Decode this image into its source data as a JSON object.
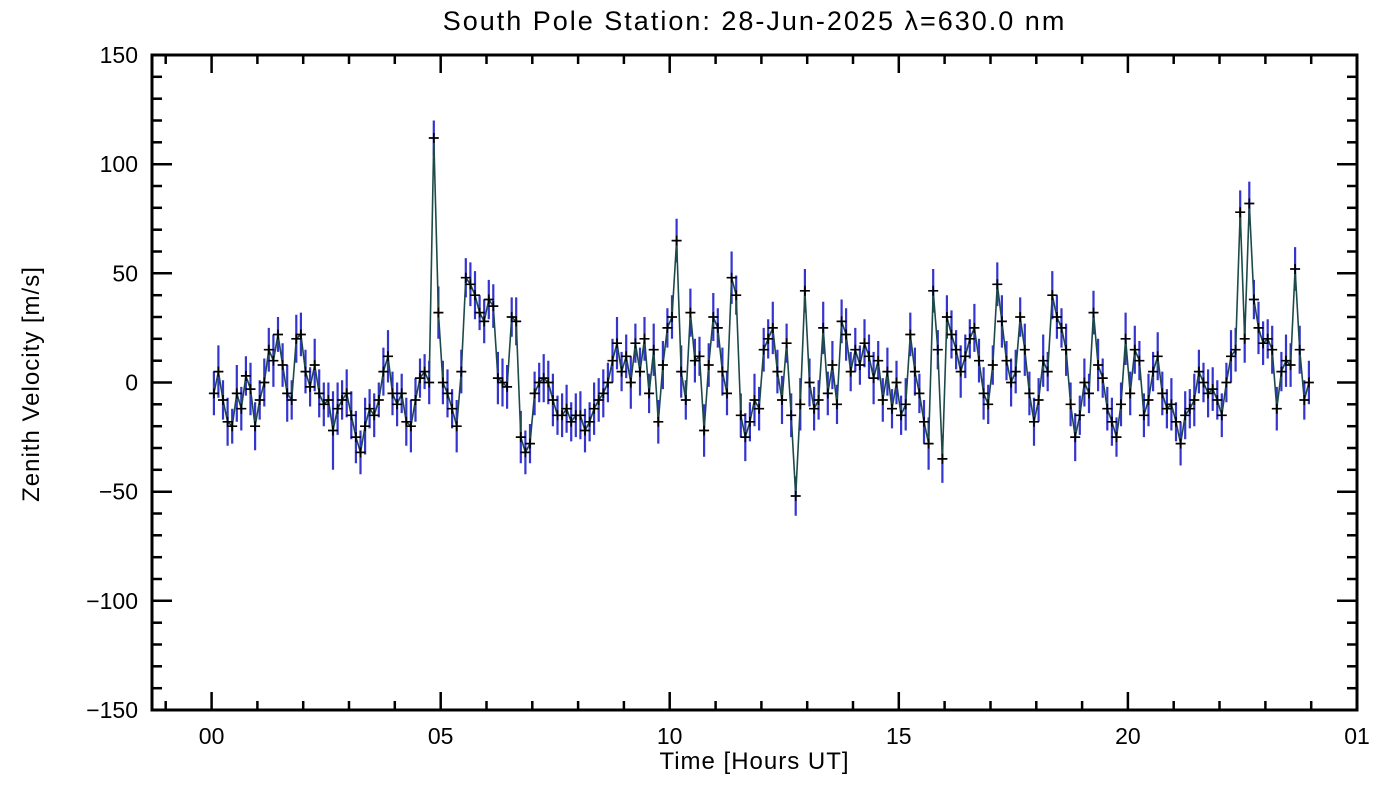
{
  "chart_data": {
    "type": "line",
    "title": "South Pole Station: 28-Jun-2025 λ=630.0 nm",
    "xlabel": "Time [Hours UT]",
    "ylabel": "Zenith Velocity [m/s]",
    "xlim": [
      -1.3,
      25
    ],
    "ylim": [
      -150,
      150
    ],
    "grid": false,
    "legend_position": "none",
    "marker": "plus",
    "error_bars": true,
    "colors": {
      "line": "#1d4a49",
      "error_bar": "#3434cf",
      "marker": "#000000",
      "frame": "#000000",
      "background": "#ffffff"
    },
    "xticks": [
      {
        "value": 0,
        "label": "00"
      },
      {
        "value": 5,
        "label": "05"
      },
      {
        "value": 10,
        "label": "10"
      },
      {
        "value": 15,
        "label": "15"
      },
      {
        "value": 20,
        "label": "20"
      },
      {
        "value": 25,
        "label": "01"
      }
    ],
    "x_minor_interval": 1,
    "yticks": [
      {
        "value": -150,
        "label": "−150"
      },
      {
        "value": -100,
        "label": "−100"
      },
      {
        "value": -50,
        "label": "−50"
      },
      {
        "value": 0,
        "label": "0"
      },
      {
        "value": 50,
        "label": "50"
      },
      {
        "value": 100,
        "label": "100"
      },
      {
        "value": 150,
        "label": "150"
      }
    ],
    "y_minor_interval": 10,
    "series": [
      {
        "name": "zenith-velocity",
        "x": [
          0.05,
          0.15,
          0.25,
          0.35,
          0.45,
          0.55,
          0.65,
          0.75,
          0.85,
          0.95,
          1.05,
          1.15,
          1.25,
          1.35,
          1.45,
          1.55,
          1.65,
          1.75,
          1.85,
          1.95,
          2.05,
          2.15,
          2.25,
          2.35,
          2.45,
          2.55,
          2.65,
          2.75,
          2.85,
          2.95,
          3.05,
          3.15,
          3.25,
          3.35,
          3.45,
          3.55,
          3.65,
          3.75,
          3.85,
          3.95,
          4.05,
          4.15,
          4.25,
          4.35,
          4.45,
          4.55,
          4.65,
          4.75,
          4.85,
          4.95,
          5.05,
          5.15,
          5.25,
          5.35,
          5.45,
          5.55,
          5.65,
          5.75,
          5.85,
          5.95,
          6.05,
          6.15,
          6.25,
          6.35,
          6.45,
          6.55,
          6.65,
          6.75,
          6.85,
          6.95,
          7.05,
          7.15,
          7.25,
          7.35,
          7.45,
          7.55,
          7.65,
          7.75,
          7.85,
          7.95,
          8.05,
          8.15,
          8.25,
          8.35,
          8.45,
          8.55,
          8.65,
          8.75,
          8.85,
          8.95,
          9.05,
          9.15,
          9.25,
          9.35,
          9.45,
          9.55,
          9.65,
          9.75,
          9.85,
          9.95,
          10.05,
          10.15,
          10.25,
          10.35,
          10.45,
          10.55,
          10.65,
          10.75,
          10.85,
          10.95,
          11.05,
          11.15,
          11.25,
          11.35,
          11.45,
          11.55,
          11.65,
          11.75,
          11.85,
          11.95,
          12.05,
          12.15,
          12.25,
          12.35,
          12.45,
          12.55,
          12.65,
          12.75,
          12.85,
          12.95,
          13.05,
          13.15,
          13.25,
          13.35,
          13.45,
          13.55,
          13.65,
          13.75,
          13.85,
          13.95,
          14.05,
          14.15,
          14.25,
          14.35,
          14.45,
          14.55,
          14.65,
          14.75,
          14.85,
          14.95,
          15.05,
          15.15,
          15.25,
          15.35,
          15.45,
          15.55,
          15.65,
          15.75,
          15.85,
          15.95,
          16.05,
          16.15,
          16.25,
          16.35,
          16.45,
          16.55,
          16.65,
          16.75,
          16.85,
          16.95,
          17.05,
          17.15,
          17.25,
          17.35,
          17.45,
          17.55,
          17.65,
          17.75,
          17.85,
          17.95,
          18.05,
          18.15,
          18.25,
          18.35,
          18.45,
          18.55,
          18.65,
          18.75,
          18.85,
          18.95,
          19.05,
          19.15,
          19.25,
          19.35,
          19.45,
          19.55,
          19.65,
          19.75,
          19.85,
          19.95,
          20.05,
          20.15,
          20.25,
          20.35,
          20.45,
          20.55,
          20.65,
          20.75,
          20.85,
          20.95,
          21.05,
          21.15,
          21.25,
          21.35,
          21.45,
          21.55,
          21.65,
          21.75,
          21.85,
          21.95,
          22.05,
          22.15,
          22.25,
          22.35,
          22.45,
          22.55,
          22.65,
          22.75,
          22.85,
          22.95,
          23.05,
          23.15,
          23.25,
          23.35,
          23.45,
          23.55,
          23.65,
          23.75,
          23.85,
          23.95
        ],
        "y": [
          -5,
          5,
          -8,
          -18,
          -20,
          -5,
          -12,
          3,
          -3,
          -20,
          -8,
          0,
          15,
          10,
          22,
          8,
          -5,
          -8,
          20,
          22,
          5,
          -2,
          8,
          -5,
          -10,
          -8,
          -22,
          -12,
          -8,
          -5,
          -15,
          -25,
          -32,
          -20,
          -12,
          -15,
          -8,
          5,
          12,
          -5,
          -10,
          -5,
          -18,
          -20,
          -8,
          2,
          5,
          0,
          112,
          32,
          0,
          -5,
          -12,
          -20,
          5,
          48,
          45,
          40,
          32,
          28,
          38,
          35,
          2,
          0,
          -2,
          30,
          28,
          -25,
          -32,
          -28,
          -5,
          0,
          2,
          0,
          -8,
          -15,
          -15,
          -12,
          -18,
          -15,
          -15,
          -22,
          -18,
          -12,
          -8,
          -5,
          0,
          10,
          18,
          5,
          12,
          0,
          18,
          5,
          20,
          -5,
          15,
          -18,
          8,
          25,
          30,
          65,
          5,
          -8,
          32,
          10,
          12,
          -22,
          8,
          30,
          25,
          5,
          -5,
          48,
          40,
          -15,
          -25,
          -18,
          -8,
          -12,
          15,
          20,
          25,
          5,
          -8,
          18,
          -15,
          -52,
          -10,
          42,
          0,
          -12,
          -8,
          25,
          -5,
          8,
          -10,
          28,
          22,
          5,
          15,
          8,
          18,
          12,
          2,
          10,
          -8,
          5,
          -12,
          0,
          -15,
          -10,
          22,
          5,
          -5,
          -18,
          -28,
          42,
          15,
          -35,
          30,
          22,
          15,
          5,
          12,
          20,
          25,
          10,
          -5,
          -10,
          8,
          45,
          28,
          10,
          0,
          5,
          30,
          15,
          -5,
          -18,
          -8,
          10,
          5,
          40,
          30,
          25,
          15,
          -10,
          -25,
          -15,
          0,
          -5,
          32,
          8,
          2,
          -12,
          -18,
          -25,
          -10,
          20,
          -5,
          15,
          10,
          -15,
          -8,
          5,
          12,
          -5,
          -12,
          -10,
          -18,
          -28,
          -15,
          -12,
          -8,
          5,
          0,
          -5,
          -3,
          -8,
          -15,
          0,
          12,
          15,
          78,
          20,
          82,
          38,
          25,
          18,
          20,
          15,
          -12,
          5,
          10,
          8,
          52,
          15,
          -8,
          0
        ],
        "yerr": [
          10,
          12,
          9,
          11,
          8,
          13,
          10,
          9,
          12,
          11,
          9,
          11,
          10,
          12,
          8,
          10,
          13,
          9,
          11,
          10,
          10,
          9,
          12,
          11,
          10,
          8,
          18,
          12,
          9,
          11,
          11,
          12,
          10,
          13,
          9,
          10,
          8,
          11,
          12,
          10,
          10,
          9,
          11,
          12,
          10,
          9,
          8,
          10,
          8,
          12,
          10,
          11,
          9,
          12,
          10,
          9,
          10,
          11,
          8,
          10,
          9,
          10,
          12,
          11,
          10,
          9,
          11,
          12,
          10,
          9,
          10,
          9,
          11,
          10,
          12,
          9,
          10,
          11,
          9,
          10,
          11,
          10,
          9,
          12,
          10,
          11,
          9,
          10,
          12,
          9,
          10,
          12,
          9,
          11,
          10,
          9,
          12,
          10,
          11,
          9,
          10,
          10,
          12,
          9,
          11,
          10,
          9,
          12,
          10,
          11,
          9,
          11,
          10,
          12,
          9,
          10,
          11,
          9,
          12,
          10,
          10,
          9,
          12,
          10,
          11,
          9,
          10,
          9,
          12,
          10,
          11,
          10,
          9,
          12,
          10,
          11,
          9,
          10,
          12,
          9,
          10,
          9,
          11,
          10,
          12,
          9,
          10,
          11,
          9,
          10,
          9,
          12,
          10,
          11,
          9,
          10,
          12,
          10,
          9,
          11,
          10,
          11,
          9,
          12,
          10,
          9,
          11,
          10,
          12,
          9,
          9,
          10,
          12,
          9,
          11,
          10,
          9,
          12,
          10,
          11,
          10,
          12,
          9,
          11,
          10,
          9,
          12,
          10,
          11,
          9,
          11,
          9,
          10,
          12,
          9,
          10,
          11,
          9,
          10,
          12,
          10,
          11,
          9,
          10,
          12,
          9,
          11,
          10,
          9,
          12,
          9,
          10,
          11,
          9,
          12,
          10,
          9,
          11,
          10,
          9,
          10,
          9,
          12,
          10,
          10,
          11,
          10,
          9,
          12,
          10,
          9,
          11,
          10,
          9,
          12,
          10,
          10,
          11,
          9,
          10
        ]
      }
    ]
  }
}
